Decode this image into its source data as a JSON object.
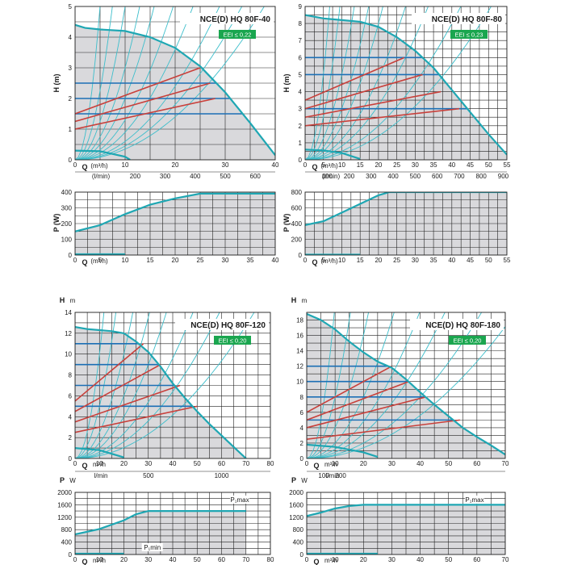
{
  "colors": {
    "curve": "#1fa7b3",
    "system": "#3cbecb",
    "blue": "#1c6fb5",
    "red": "#c8403b",
    "fill": "#d9d9dc",
    "grid": "#222222",
    "eei_bg": "#1aa64f"
  },
  "chart_data": [
    {
      "type": "line",
      "title": "NCE(D) HQ 80F-40",
      "eei": "EEI ≤ 0,22",
      "H": {
        "ylabel": "H (m)",
        "yunit": "",
        "ylim": [
          0,
          5
        ],
        "yticks": [
          0,
          1,
          2,
          3,
          4,
          5
        ],
        "xlabel": "Q",
        "xunit": "(m³/h)",
        "xlim": [
          0,
          40
        ],
        "xticks": [
          0,
          10,
          20,
          30,
          40
        ],
        "lmin_label": "(l/min)",
        "lmin_ticks": [
          "200",
          "300",
          "400",
          "500",
          "600"
        ],
        "lmin_values": [
          200,
          300,
          400,
          500,
          600
        ],
        "max_curve": [
          [
            0,
            4.4
          ],
          [
            2,
            4.3
          ],
          [
            5,
            4.25
          ],
          [
            10,
            4.2
          ],
          [
            15,
            4.0
          ],
          [
            20,
            3.65
          ],
          [
            25,
            3.05
          ],
          [
            30,
            2.2
          ],
          [
            35,
            1.2
          ],
          [
            40,
            0.15
          ]
        ],
        "min_curve": [
          [
            0,
            0.3
          ],
          [
            5,
            0.28
          ],
          [
            10,
            0.1
          ],
          [
            11,
            0
          ]
        ],
        "const_levels": [
          1.5,
          2.0,
          2.5
        ],
        "prop_lines": [
          [
            [
              0,
              1.0
            ],
            [
              28,
              2.0
            ]
          ],
          [
            [
              0,
              1.25
            ],
            [
              27,
              2.5
            ]
          ],
          [
            [
              0,
              1.5
            ],
            [
              25,
              3.0
            ]
          ]
        ],
        "system_k": [
          0.2,
          0.09,
          0.05,
          0.03,
          0.02,
          0.013,
          0.009,
          0.006,
          0.0045,
          0.0035
        ]
      },
      "P": {
        "ylabel": "P (W)",
        "yunit": "",
        "ylim": [
          0,
          400
        ],
        "yticks": [
          0,
          100,
          200,
          300,
          400
        ],
        "xlabel": "Q",
        "xunit": "(m³/h)",
        "xlim": [
          0,
          40
        ],
        "xticks": [
          0,
          5,
          10,
          15,
          20,
          25,
          30,
          35,
          40
        ],
        "max_curve": [
          [
            0,
            150
          ],
          [
            5,
            190
          ],
          [
            10,
            260
          ],
          [
            15,
            320
          ],
          [
            20,
            360
          ],
          [
            25,
            390
          ],
          [
            30,
            390
          ],
          [
            40,
            390
          ]
        ],
        "min_curve": [
          [
            0,
            5
          ],
          [
            10,
            5
          ]
        ],
        "pmax_label": "",
        "pmin_label": ""
      }
    },
    {
      "type": "line",
      "title": "NCE(D) HQ 80F-80",
      "eei": "EEI ≤ 0,23",
      "H": {
        "ylabel": "H (m)",
        "yunit": "",
        "ylim": [
          0,
          9
        ],
        "yticks": [
          0,
          1,
          2,
          3,
          4,
          5,
          6,
          7,
          8,
          9
        ],
        "xlabel": "Q",
        "xunit": "(m³/h)",
        "xlim": [
          0,
          55
        ],
        "xticks": [
          0,
          5,
          10,
          15,
          20,
          25,
          30,
          35,
          40,
          45,
          50,
          55
        ],
        "lmin_label": "(l/min)",
        "lmin_ticks": [
          "100",
          "200",
          "300",
          "400",
          "500",
          "600",
          "700",
          "800",
          "900"
        ],
        "lmin_values": [
          100,
          200,
          300,
          400,
          500,
          600,
          700,
          800,
          900
        ],
        "max_curve": [
          [
            0,
            8.5
          ],
          [
            5,
            8.3
          ],
          [
            10,
            8.2
          ],
          [
            15,
            8.1
          ],
          [
            20,
            7.8
          ],
          [
            25,
            7.2
          ],
          [
            30,
            6.4
          ],
          [
            35,
            5.4
          ],
          [
            40,
            4.1
          ],
          [
            45,
            2.8
          ],
          [
            50,
            1.5
          ],
          [
            55,
            0.3
          ]
        ],
        "min_curve": [
          [
            0,
            0.6
          ],
          [
            5,
            0.55
          ],
          [
            10,
            0.4
          ],
          [
            15,
            0.05
          ]
        ],
        "const_levels": [
          3,
          5,
          6
        ],
        "prop_lines": [
          [
            [
              0,
              2.0
            ],
            [
              42,
              3.0
            ]
          ],
          [
            [
              0,
              2.5
            ],
            [
              37,
              4.0
            ]
          ],
          [
            [
              0,
              3.0
            ],
            [
              32,
              5.0
            ]
          ],
          [
            [
              0,
              3.5
            ],
            [
              27,
              6.0
            ]
          ]
        ],
        "system_k": [
          0.2,
          0.1,
          0.05,
          0.03,
          0.02,
          0.012,
          0.008,
          0.005,
          0.0035
        ]
      },
      "P": {
        "ylabel": "P (W)",
        "yunit": "",
        "ylim": [
          0,
          800
        ],
        "yticks": [
          0,
          200,
          400,
          600,
          800
        ],
        "xlabel": "Q",
        "xunit": "(m³/h)",
        "xlim": [
          0,
          55
        ],
        "xticks": [
          0,
          5,
          10,
          15,
          20,
          25,
          30,
          35,
          40,
          45,
          50,
          55
        ],
        "max_curve": [
          [
            0,
            380
          ],
          [
            5,
            430
          ],
          [
            10,
            540
          ],
          [
            15,
            650
          ],
          [
            20,
            760
          ],
          [
            23,
            800
          ],
          [
            30,
            800
          ],
          [
            55,
            800
          ]
        ],
        "min_curve": [
          [
            0,
            5
          ],
          [
            15,
            5
          ]
        ],
        "pmax_label": "",
        "pmin_label": ""
      }
    },
    {
      "type": "line",
      "title": "NCE(D) HQ 80F-120",
      "eei": "EEI ≤ 0,20",
      "H": {
        "ylabel": "H",
        "yunit": "m",
        "ylim": [
          0,
          14
        ],
        "yticks": [
          0,
          2,
          4,
          6,
          8,
          10,
          12,
          14
        ],
        "xlabel": "Q",
        "xunit": "m³/h",
        "xlim": [
          0,
          80
        ],
        "xticks": [
          0,
          10,
          20,
          30,
          40,
          50,
          60,
          70,
          80
        ],
        "lmin_label": "l/min",
        "lmin_ticks": [
          "500",
          "1000"
        ],
        "lmin_values": [
          500,
          1000
        ],
        "max_curve": [
          [
            0,
            12.6
          ],
          [
            5,
            12.4
          ],
          [
            10,
            12.3
          ],
          [
            15,
            12.2
          ],
          [
            20,
            12.0
          ],
          [
            25,
            11.2
          ],
          [
            30,
            10.2
          ],
          [
            35,
            8.8
          ],
          [
            40,
            7.2
          ],
          [
            45,
            5.8
          ],
          [
            50,
            4.5
          ],
          [
            55,
            3.3
          ],
          [
            60,
            2.2
          ],
          [
            65,
            1.1
          ],
          [
            70,
            0
          ]
        ],
        "min_curve": [
          [
            0,
            1.0
          ],
          [
            10,
            0.8
          ],
          [
            20,
            0.1
          ]
        ],
        "const_levels": [
          5,
          7,
          9,
          11
        ],
        "prop_lines": [
          [
            [
              0,
              2.5
            ],
            [
              50,
              5.0
            ]
          ],
          [
            [
              0,
              3.5
            ],
            [
              43,
              7.0
            ]
          ],
          [
            [
              0,
              4.5
            ],
            [
              35,
              9.0
            ]
          ],
          [
            [
              0,
              5.5
            ],
            [
              28,
              11.0
            ]
          ]
        ],
        "system_k": [
          0.1,
          0.05,
          0.025,
          0.015,
          0.01,
          0.006,
          0.004,
          0.0026
        ]
      },
      "P": {
        "ylabel": "P",
        "yunit": "W",
        "ylim": [
          0,
          2000
        ],
        "yticks": [
          0,
          400,
          800,
          1200,
          1600,
          2000
        ],
        "xlabel": "Q",
        "xunit": "m³/h",
        "xlim": [
          0,
          80
        ],
        "xticks": [
          0,
          10,
          20,
          30,
          40,
          50,
          60,
          70,
          80
        ],
        "max_curve": [
          [
            0,
            650
          ],
          [
            10,
            820
          ],
          [
            20,
            1100
          ],
          [
            25,
            1300
          ],
          [
            30,
            1400
          ],
          [
            40,
            1400
          ],
          [
            70,
            1400
          ]
        ],
        "min_curve": [
          [
            0,
            25
          ],
          [
            20,
            25
          ]
        ],
        "pmax_label": "P₁max",
        "pmin_label": "P₁min"
      }
    },
    {
      "type": "line",
      "title": "NCE(D) HQ 80F-180",
      "eei": "EEI ≤ 0,20",
      "H": {
        "ylabel": "H",
        "yunit": "m",
        "ylim": [
          0,
          19
        ],
        "yticks": [
          0,
          2,
          4,
          6,
          8,
          10,
          12,
          14,
          16,
          18
        ],
        "xlabel": "Q",
        "xunit": "m³/h",
        "xlim": [
          0,
          70
        ],
        "xticks": [
          0,
          10,
          20,
          30,
          40,
          50,
          60,
          70
        ],
        "lmin_label": "l/min",
        "lmin_ticks": [
          "100",
          "200"
        ],
        "lmin_values": [
          100,
          200
        ],
        "max_curve": [
          [
            0,
            18.8
          ],
          [
            5,
            18.0
          ],
          [
            10,
            16.8
          ],
          [
            15,
            15.2
          ],
          [
            20,
            13.8
          ],
          [
            25,
            12.6
          ],
          [
            30,
            11.8
          ],
          [
            35,
            10.3
          ],
          [
            40,
            8.6
          ],
          [
            45,
            7.0
          ],
          [
            50,
            5.5
          ],
          [
            55,
            4.0
          ],
          [
            60,
            2.8
          ],
          [
            65,
            1.7
          ],
          [
            70,
            0.5
          ]
        ],
        "min_curve": [
          [
            0,
            1.8
          ],
          [
            10,
            1.5
          ],
          [
            20,
            0.8
          ],
          [
            25,
            0.2
          ]
        ],
        "const_levels": [
          5,
          8,
          10,
          12
        ],
        "prop_lines": [
          [
            [
              0,
              2.5
            ],
            [
              54,
              5.0
            ]
          ],
          [
            [
              0,
              4.0
            ],
            [
              42,
              8.0
            ]
          ],
          [
            [
              0,
              5.0
            ],
            [
              36,
              10.0
            ]
          ],
          [
            [
              0,
              6.0
            ],
            [
              30,
              12.0
            ]
          ]
        ],
        "system_k": [
          0.2,
          0.08,
          0.04,
          0.02,
          0.012,
          0.008,
          0.005,
          0.0035
        ]
      },
      "P": {
        "ylabel": "P",
        "yunit": "W",
        "ylim": [
          0,
          2000
        ],
        "yticks": [
          0,
          400,
          800,
          1200,
          1600,
          2000
        ],
        "xlabel": "Q",
        "xunit": "m³/h",
        "xlim": [
          0,
          70
        ],
        "xticks": [
          0,
          10,
          20,
          30,
          40,
          50,
          60,
          70
        ],
        "max_curve": [
          [
            0,
            1240
          ],
          [
            5,
            1350
          ],
          [
            10,
            1480
          ],
          [
            15,
            1560
          ],
          [
            20,
            1600
          ],
          [
            70,
            1600
          ]
        ],
        "min_curve": [
          [
            0,
            25
          ],
          [
            25,
            25
          ]
        ],
        "pmax_label": "P₁max",
        "pmin_label": ""
      }
    }
  ]
}
